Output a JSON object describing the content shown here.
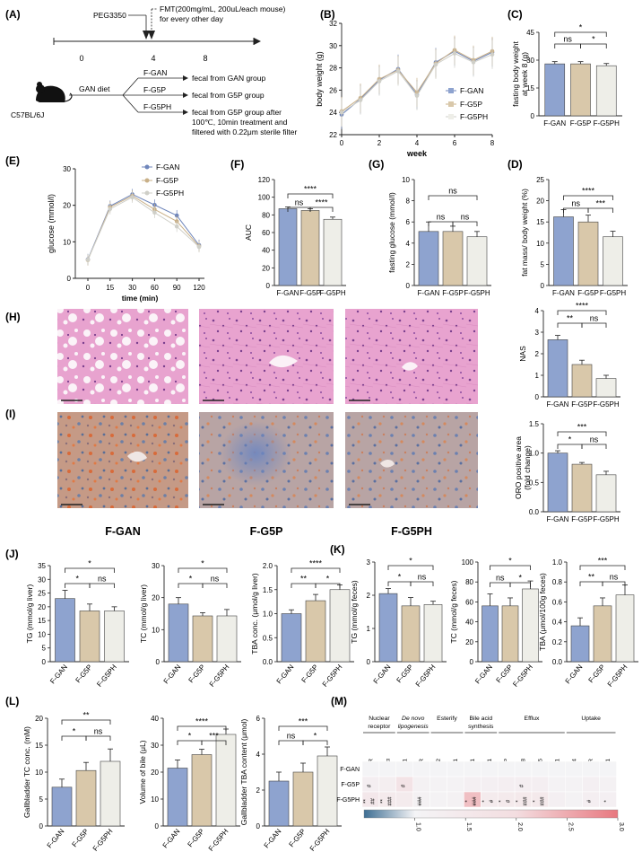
{
  "colors": {
    "gan": "#8ea3cf",
    "g5p": "#d9c8aa",
    "g5ph": "#eeeee8",
    "gan_line": "#6f86bb",
    "g5p_line": "#c9b088",
    "g5ph_line": "#cfcfc8",
    "bar_stroke": "#444444",
    "axis": "#222222",
    "he_bg": "#e7a2cf",
    "oro_bg": "#caa08e",
    "heat_low": "#3e6e93",
    "heat_mid": "#f4f4f6",
    "heat_high": "#e8787f"
  },
  "groups": [
    "F-GAN",
    "F-G5P",
    "F-G5PH"
  ],
  "panelA": {
    "label": "(A)",
    "peg": "PEG3350",
    "fmt1": "FMT(200mg/mL, 200uL/each mouse)",
    "fmt2": "for every other day",
    "ticks": [
      "0",
      "4",
      "8"
    ],
    "diet": "GAN diet",
    "strain": "C57BL/6J",
    "branches": [
      {
        "name": "F-GAN",
        "desc": [
          "fecal from GAN group"
        ]
      },
      {
        "name": "F-G5P",
        "desc": [
          "fecal from G5P group"
        ]
      },
      {
        "name": "F-G5PH",
        "desc": [
          "fecal from G5P group after",
          "100℃, 10min treatment and",
          "filtered with 0.22μm sterile filter"
        ]
      }
    ]
  },
  "chart_data": [
    {
      "panel": "(B)",
      "type": "line",
      "xlabel": "week",
      "ylabel": "body weight (g)",
      "xlim": [
        0,
        8
      ],
      "ylim": [
        22,
        32
      ],
      "xticks": [
        0,
        2,
        4,
        6,
        8
      ],
      "yticks": [
        22,
        24,
        26,
        28,
        30,
        32
      ],
      "x": [
        0,
        1,
        2,
        3,
        4,
        5,
        6,
        7,
        8
      ],
      "legend": "right",
      "series": [
        {
          "name": "F-GAN",
          "values": [
            23.8,
            25.2,
            26.9,
            27.9,
            25.6,
            28.5,
            29.5,
            28.6,
            29.4
          ]
        },
        {
          "name": "F-G5P",
          "values": [
            24.1,
            25.3,
            27.0,
            27.8,
            25.8,
            28.4,
            29.6,
            28.7,
            29.5
          ]
        },
        {
          "name": "F-G5PH",
          "values": [
            24.0,
            25.1,
            26.8,
            27.7,
            25.5,
            28.3,
            29.3,
            28.5,
            29.2
          ]
        }
      ]
    },
    {
      "panel": "(C)",
      "type": "bar",
      "ylabel": "fasting body weight at week 8 (g)",
      "ylim": [
        0,
        45
      ],
      "yticks": [
        0,
        15,
        30,
        45
      ],
      "categories": [
        "F-GAN",
        "F-G5P",
        "F-G5PH"
      ],
      "values": [
        28,
        28,
        27
      ],
      "errors": [
        1.2,
        1.2,
        1.2
      ],
      "sig": [
        {
          "a": 0,
          "b": 1,
          "text": "ns"
        },
        {
          "a": 1,
          "b": 2,
          "text": "*"
        },
        {
          "a": 0,
          "b": 2,
          "text": "*"
        }
      ]
    },
    {
      "panel": "(E)",
      "type": "line",
      "xlabel": "time (min)",
      "ylabel": "glucose (mmol/l)",
      "xcats": [
        "0",
        "15",
        "30",
        "60",
        "90",
        "120"
      ],
      "ylim": [
        0,
        30
      ],
      "yticks": [
        0,
        10,
        20,
        30
      ],
      "legend": "top-right",
      "series": [
        {
          "name": "F-GAN",
          "values": [
            5.2,
            19.8,
            23.0,
            20.1,
            17.2,
            9.1
          ]
        },
        {
          "name": "F-G5P",
          "values": [
            5.0,
            19.5,
            22.6,
            18.9,
            15.6,
            8.8
          ]
        },
        {
          "name": "F-G5PH",
          "values": [
            5.1,
            19.0,
            22.2,
            18.0,
            14.2,
            8.6
          ]
        }
      ]
    },
    {
      "panel": "(F)",
      "type": "bar",
      "ylabel": "AUC",
      "ylim": [
        0,
        120
      ],
      "yticks": [
        0,
        20,
        40,
        60,
        80,
        100,
        120
      ],
      "categories": [
        "F-GAN",
        "F-G5P",
        "F-G5PH"
      ],
      "values": [
        87,
        85,
        75
      ],
      "errors": [
        2,
        2,
        2.5
      ],
      "sig": [
        {
          "a": 0,
          "b": 1,
          "text": "ns"
        },
        {
          "a": 1,
          "b": 2,
          "text": "****"
        },
        {
          "a": 0,
          "b": 2,
          "text": "****"
        }
      ]
    },
    {
      "panel": "(G)",
      "type": "bar",
      "ylabel": "fasting glucose (mmol/l)",
      "ylim": [
        0,
        10
      ],
      "yticks": [
        0,
        2,
        4,
        6,
        8,
        10
      ],
      "categories": [
        "F-GAN",
        "F-G5P",
        "F-G5PH"
      ],
      "values": [
        5.1,
        5.1,
        4.6
      ],
      "errors": [
        0.9,
        0.5,
        0.5
      ],
      "sig": [
        {
          "a": 0,
          "b": 1,
          "text": "ns"
        },
        {
          "a": 1,
          "b": 2,
          "text": "ns"
        },
        {
          "a": 0,
          "b": 2,
          "text": "ns"
        }
      ]
    },
    {
      "panel": "(D)",
      "type": "bar",
      "ylabel": "fat mass/ body weight (%)",
      "ylim": [
        0,
        25
      ],
      "yticks": [
        0,
        5,
        10,
        15,
        20,
        25
      ],
      "categories": [
        "F-GAN",
        "F-G5P",
        "F-G5PH"
      ],
      "values": [
        16.2,
        15.0,
        11.5
      ],
      "errors": [
        1.7,
        1.6,
        1.3
      ],
      "sig": [
        {
          "a": 0,
          "b": 1,
          "text": "ns"
        },
        {
          "a": 1,
          "b": 2,
          "text": "***"
        },
        {
          "a": 0,
          "b": 2,
          "text": "****"
        }
      ]
    },
    {
      "panel": "(H)",
      "type": "bar",
      "ylabel": "NAS",
      "ylim": [
        0,
        4
      ],
      "yticks": [
        0,
        1,
        2,
        3,
        4
      ],
      "categories": [
        "F-GAN",
        "F-G5P",
        "F-G5PH"
      ],
      "values": [
        2.65,
        1.5,
        0.85
      ],
      "errors": [
        0.2,
        0.2,
        0.15
      ],
      "sig": [
        {
          "a": 0,
          "b": 1,
          "text": "**"
        },
        {
          "a": 1,
          "b": 2,
          "text": "ns"
        },
        {
          "a": 0,
          "b": 2,
          "text": "****"
        }
      ]
    },
    {
      "panel": "(I)",
      "type": "bar",
      "ylabel": "ORO positive area (fold change)",
      "ylim": [
        0,
        1.5
      ],
      "yticks": [
        0.0,
        0.5,
        1.0,
        1.5
      ],
      "categories": [
        "F-GAN",
        "F-G5P",
        "F-G5PH"
      ],
      "values": [
        1.0,
        0.81,
        0.63
      ],
      "errors": [
        0.04,
        0.03,
        0.06
      ],
      "sig": [
        {
          "a": 0,
          "b": 1,
          "text": "*"
        },
        {
          "a": 1,
          "b": 2,
          "text": "ns"
        },
        {
          "a": 0,
          "b": 2,
          "text": "***"
        }
      ]
    },
    {
      "panel": "(J)",
      "type": "bar",
      "ylabel": "TG (mmol/g liver)",
      "ylim": [
        0,
        35
      ],
      "yticks": [
        0,
        5,
        10,
        15,
        20,
        25,
        30,
        35
      ],
      "categories": [
        "F-GAN",
        "F-G5P",
        "F-G5PH"
      ],
      "values": [
        23,
        18.5,
        18.5
      ],
      "errors": [
        3,
        2.5,
        1.5
      ],
      "sig": [
        {
          "a": 0,
          "b": 1,
          "text": "*"
        },
        {
          "a": 1,
          "b": 2,
          "text": "ns"
        },
        {
          "a": 0,
          "b": 2,
          "text": "*"
        }
      ]
    },
    {
      "panel": "J-TC",
      "type": "bar",
      "ylabel": "TC (mmol/g liver)",
      "ylim": [
        0,
        30
      ],
      "yticks": [
        0,
        10,
        20,
        30
      ],
      "categories": [
        "F-GAN",
        "F-G5P",
        "F-G5PH"
      ],
      "values": [
        18,
        14.3,
        14.3
      ],
      "errors": [
        2,
        1,
        2
      ],
      "sig": [
        {
          "a": 0,
          "b": 1,
          "text": "*"
        },
        {
          "a": 1,
          "b": 2,
          "text": "ns"
        },
        {
          "a": 0,
          "b": 2,
          "text": "*"
        }
      ]
    },
    {
      "panel": "J-TBA",
      "type": "bar",
      "ylabel": "TBA conc. (μmol/g liver)",
      "ylim": [
        0,
        2.0
      ],
      "yticks": [
        0.0,
        0.5,
        1.0,
        1.5,
        2.0
      ],
      "categories": [
        "F-GAN",
        "F-G5P",
        "F-G5PH"
      ],
      "values": [
        1.0,
        1.27,
        1.5
      ],
      "errors": [
        0.08,
        0.13,
        0.1
      ],
      "sig": [
        {
          "a": 0,
          "b": 1,
          "text": "**"
        },
        {
          "a": 1,
          "b": 2,
          "text": "*"
        },
        {
          "a": 0,
          "b": 2,
          "text": "****"
        }
      ]
    },
    {
      "panel": "(K)",
      "type": "bar",
      "ylabel": "TG (mmol/g feces)",
      "ylim": [
        0,
        3
      ],
      "yticks": [
        0,
        1,
        2,
        3
      ],
      "categories": [
        "F-GAN",
        "F-G5P",
        "F-G5PH"
      ],
      "values": [
        2.05,
        1.68,
        1.72
      ],
      "errors": [
        0.15,
        0.25,
        0.1
      ],
      "sig": [
        {
          "a": 0,
          "b": 1,
          "text": "*"
        },
        {
          "a": 1,
          "b": 2,
          "text": "ns"
        },
        {
          "a": 0,
          "b": 2,
          "text": "*"
        }
      ]
    },
    {
      "panel": "K-TC",
      "type": "bar",
      "ylabel": "TC (mmol/g feces)",
      "ylim": [
        0,
        100
      ],
      "yticks": [
        0,
        20,
        40,
        60,
        80,
        100
      ],
      "categories": [
        "F-GAN",
        "F-G5P",
        "F-G5PH"
      ],
      "values": [
        56,
        56,
        73
      ],
      "errors": [
        12,
        8,
        8
      ],
      "sig": [
        {
          "a": 0,
          "b": 1,
          "text": "ns"
        },
        {
          "a": 1,
          "b": 2,
          "text": "*"
        },
        {
          "a": 0,
          "b": 2,
          "text": "*"
        }
      ]
    },
    {
      "panel": "K-TBA",
      "type": "bar",
      "ylabel": "TBA (μmol/100g feces)",
      "ylim": [
        0,
        1.0
      ],
      "yticks": [
        0.0,
        0.2,
        0.4,
        0.6,
        0.8,
        1.0
      ],
      "categories": [
        "F-GAN",
        "F-G5P",
        "F-G5PH"
      ],
      "values": [
        0.36,
        0.56,
        0.67
      ],
      "errors": [
        0.08,
        0.08,
        0.1
      ],
      "sig": [
        {
          "a": 0,
          "b": 1,
          "text": "**"
        },
        {
          "a": 1,
          "b": 2,
          "text": "ns"
        },
        {
          "a": 0,
          "b": 2,
          "text": "***"
        }
      ]
    },
    {
      "panel": "(L)",
      "type": "bar",
      "ylabel": "Gallbladder TC conc. (mM)",
      "ylim": [
        0,
        20
      ],
      "yticks": [
        0,
        5,
        10,
        15,
        20
      ],
      "categories": [
        "F-GAN",
        "F-G5P",
        "F-G5PH"
      ],
      "values": [
        7.2,
        10.3,
        12
      ],
      "errors": [
        1.5,
        1.5,
        2.3
      ],
      "sig": [
        {
          "a": 0,
          "b": 1,
          "text": "*"
        },
        {
          "a": 1,
          "b": 2,
          "text": "ns"
        },
        {
          "a": 0,
          "b": 2,
          "text": "**"
        }
      ]
    },
    {
      "panel": "L-bile",
      "type": "bar",
      "ylabel": "Volume of bile (μL)",
      "ylim": [
        0,
        40
      ],
      "yticks": [
        0,
        10,
        20,
        30,
        40
      ],
      "categories": [
        "F-GAN",
        "F-G5P",
        "F-G5PH"
      ],
      "values": [
        21.5,
        26.5,
        34
      ],
      "errors": [
        3,
        2,
        2
      ],
      "sig": [
        {
          "a": 0,
          "b": 1,
          "text": "*"
        },
        {
          "a": 1,
          "b": 2,
          "text": "***"
        },
        {
          "a": 0,
          "b": 2,
          "text": "****"
        }
      ]
    },
    {
      "panel": "L-TBA",
      "type": "bar",
      "ylabel": "Gallbladder TBA content (μmol)",
      "ylim": [
        0,
        6
      ],
      "yticks": [
        0,
        2,
        4,
        6
      ],
      "categories": [
        "F-GAN",
        "F-G5P",
        "F-G5PH"
      ],
      "values": [
        2.5,
        3.0,
        3.9
      ],
      "errors": [
        0.5,
        0.5,
        0.5
      ],
      "sig": [
        {
          "a": 0,
          "b": 1,
          "text": "ns"
        },
        {
          "a": 1,
          "b": 2,
          "text": "*"
        },
        {
          "a": 0,
          "b": 2,
          "text": "***"
        }
      ]
    },
    {
      "panel": "(M)",
      "type": "heatmap",
      "categories": [
        {
          "name": "Nuclear receptor",
          "italic": false,
          "genes": [
            "FXR",
            "LXRα"
          ]
        },
        {
          "name": "De novo lipogenesis",
          "italic": true,
          "genes": [
            "SREBP1",
            "HMGCR"
          ]
        },
        {
          "name": "Esterify",
          "italic": false,
          "genes": [
            "ACAT2",
            "ACAT1"
          ]
        },
        {
          "name": "Bile acid synthesis",
          "italic": false,
          "genes": [
            "CYP7A1",
            "CYP27A1"
          ]
        },
        {
          "name": "Efflux",
          "italic": false,
          "genes": [
            "BSEP",
            "ABCG8",
            "ABCG5",
            "ABCA1"
          ]
        },
        {
          "name": "Uptake",
          "italic": false,
          "genes": [
            "FATP4",
            "LDLR",
            "SRB1"
          ]
        }
      ],
      "rows": [
        "F-GAN",
        "F-G5P",
        "F-G5PH"
      ],
      "values": [
        [
          1.0,
          1.0,
          1.0,
          1.0,
          1.0,
          1.0,
          1.0,
          1.0,
          1.0,
          1.0,
          1.0,
          1.0,
          1.0,
          1.0,
          1.0
        ],
        [
          1.25,
          1.28,
          1.75,
          1.15,
          1.1,
          1.1,
          1.2,
          1.2,
          1.25,
          1.25,
          1.25,
          1.1,
          1.1,
          1.2,
          1.15
        ],
        [
          1.55,
          1.45,
          1.4,
          1.15,
          1.1,
          1.15,
          2.3,
          1.4,
          1.45,
          1.5,
          1.5,
          1.2,
          1.1,
          1.25,
          1.2
        ]
      ],
      "marks": [
        [
          "",
          "",
          "",
          "",
          "",
          "",
          "",
          "",
          "",
          "",
          "",
          "",
          "",
          "",
          ""
        ],
        [
          "#",
          "",
          "#",
          "",
          "",
          "",
          "",
          "",
          "",
          "#",
          "",
          "",
          "",
          "",
          ""
        ],
        [
          "**|##",
          "**|###",
          "",
          "###",
          "",
          "",
          "*|###",
          "*|#",
          "*|#",
          "*|###",
          "*|###",
          "",
          "",
          "#",
          "*"
        ]
      ],
      "colorbar": {
        "min": 0.5,
        "max": 3.0,
        "ticks": [
          "1.0",
          "1.5",
          "2.0",
          "2.5",
          "3.0"
        ]
      }
    }
  ],
  "panelH": {
    "label": "(H)",
    "group_labels": [
      "F-GAN",
      "F-G5P",
      "F-G5PH"
    ]
  },
  "panelI": {
    "label": "(I)"
  },
  "panelLetters": {
    "B": "(B)",
    "C": "(C)",
    "D": "(D)",
    "E": "(E)",
    "F": "(F)",
    "G": "(G)",
    "K": "(K)",
    "L": "(L)",
    "M": "(M)"
  }
}
